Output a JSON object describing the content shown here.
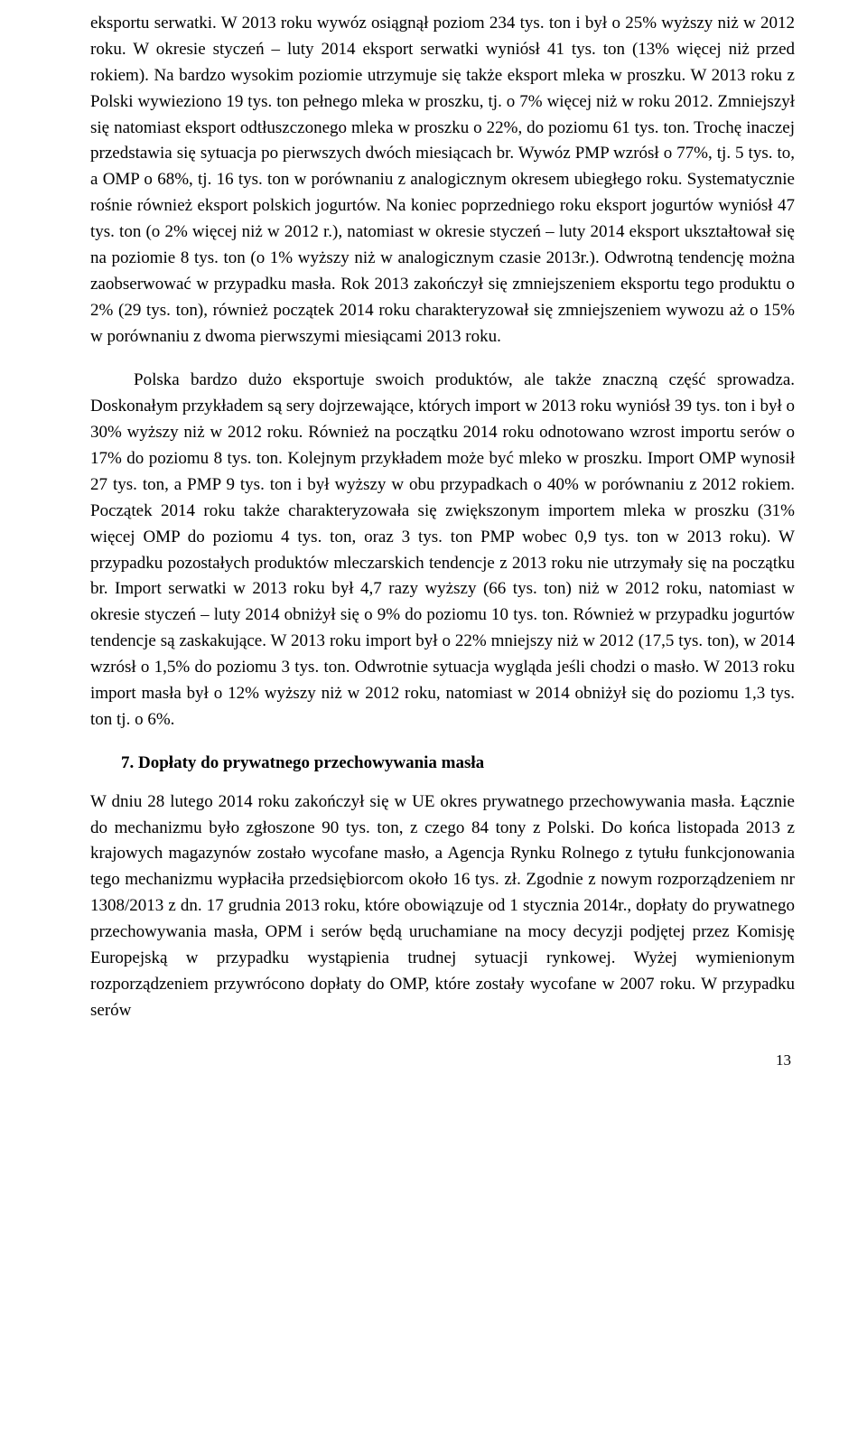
{
  "paragraphs": {
    "p1": "eksportu serwatki. W 2013 roku wywóz osiągnął poziom 234 tys. ton i był o 25% wyższy niż w 2012 roku. W okresie styczeń – luty 2014 eksport serwatki wyniósł 41 tys. ton (13% więcej niż przed rokiem). Na bardzo wysokim poziomie utrzymuje się także eksport mleka w proszku. W 2013 roku z Polski wywieziono 19 tys. ton pełnego mleka w proszku, tj. o 7% więcej niż w roku 2012. Zmniejszył się natomiast eksport odtłuszczonego mleka w proszku o 22%, do poziomu 61 tys. ton. Trochę inaczej przedstawia się sytuacja po pierwszych dwóch miesiącach br. Wywóz PMP wzrósł o 77%, tj. 5 tys. to, a OMP o 68%, tj. 16 tys. ton w porównaniu z analogicznym okresem ubiegłego roku. Systematycznie rośnie również eksport polskich jogurtów. Na koniec poprzedniego roku eksport jogurtów wyniósł 47 tys. ton (o 2% więcej niż w 2012 r.), natomiast w okresie styczeń – luty 2014 eksport ukształtował się na poziomie 8 tys. ton (o 1% wyższy niż w analogicznym czasie 2013r.). Odwrotną tendencję można zaobserwować w przypadku masła. Rok 2013 zakończył się zmniejszeniem eksportu tego produktu o 2% (29 tys. ton), również początek 2014 roku charakteryzował się zmniejszeniem wywozu aż o 15% w porównaniu z dwoma pierwszymi miesiącami 2013 roku.",
    "p2": "Polska bardzo dużo eksportuje swoich produktów, ale także znaczną część sprowadza. Doskonałym przykładem są sery dojrzewające, których import w 2013 roku wyniósł 39 tys. ton i był o 30% wyższy niż w 2012 roku. Również na początku 2014 roku odnotowano wzrost importu serów o 17% do poziomu 8 tys. ton. Kolejnym przykładem może być mleko w proszku. Import OMP wynosił 27 tys. ton, a PMP 9 tys. ton i był wyższy w obu przypadkach o 40% w porównaniu z 2012 rokiem. Początek 2014 roku także charakteryzowała się zwiększonym importem mleka w proszku (31% więcej OMP do poziomu 4 tys. ton, oraz 3 tys. ton PMP wobec 0,9 tys. ton w 2013 roku). W przypadku pozostałych produktów mleczarskich tendencje z 2013 roku nie utrzymały się na początku br. Import serwatki w 2013 roku był 4,7 razy wyższy (66 tys. ton) niż w 2012 roku, natomiast w okresie styczeń – luty 2014 obniżył się o 9% do poziomu 10 tys. ton. Również w przypadku jogurtów tendencje są zaskakujące. W 2013 roku import był o 22% mniejszy niż w 2012 (17,5 tys. ton), w 2014 wzrósł o 1,5% do poziomu 3 tys. ton. Odwrotnie sytuacja wygląda jeśli chodzi o masło. W 2013 roku import masła był o 12% wyższy niż w 2012 roku, natomiast w 2014 obniżył się do poziomu 1,3 tys. ton tj. o 6%.",
    "p3": "W dniu 28 lutego 2014 roku zakończył się w UE okres prywatnego przechowywania masła. Łącznie do mechanizmu było zgłoszone 90 tys. ton, z czego 84 tony z Polski. Do końca listopada 2013 z krajowych magazynów zostało wycofane masło, a Agencja Rynku Rolnego z tytułu funkcjonowania tego mechanizmu wypłaciła przedsiębiorcom około 16 tys. zł. Zgodnie z nowym rozporządzeniem nr 1308/2013 z dn. 17 grudnia 2013 roku, które obowiązuje od 1 stycznia 2014r., dopłaty do prywatnego przechowywania masła, OPM i serów będą uruchamiane na mocy decyzji podjętej przez Komisję Europejską w przypadku wystąpienia trudnej sytuacji rynkowej. Wyżej wymienionym rozporządzeniem przywrócono dopłaty do OMP, które zostały wycofane w 2007 roku. W przypadku serów"
  },
  "heading": "7.  Dopłaty do prywatnego przechowywania masła",
  "page_number": "13"
}
